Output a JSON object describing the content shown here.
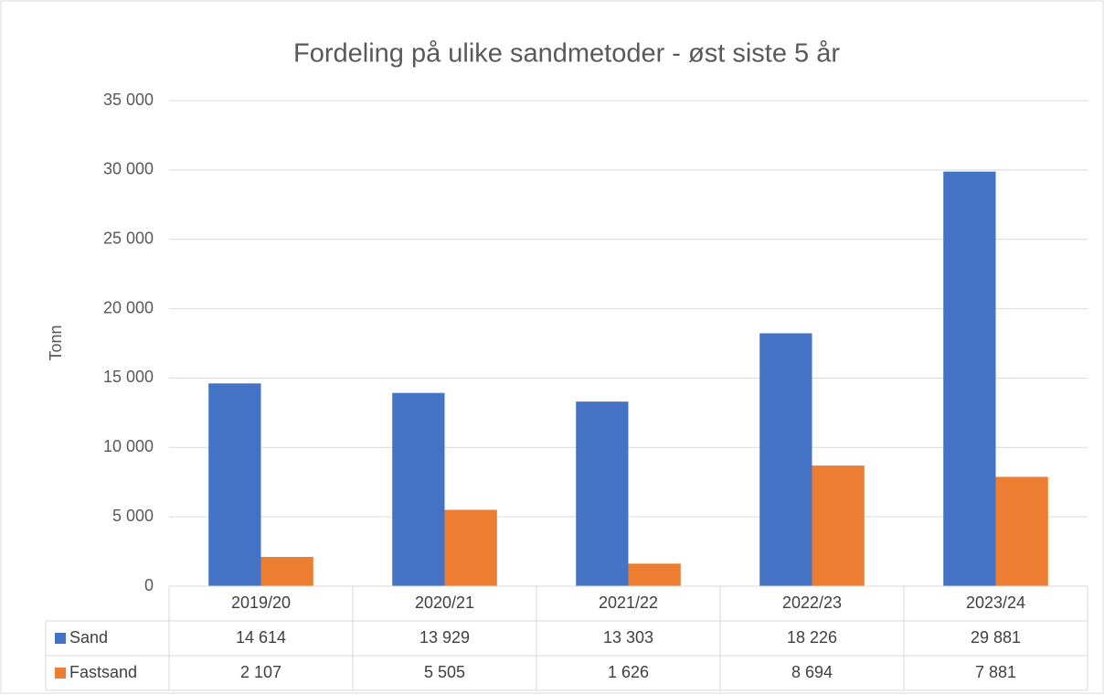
{
  "chart_data": {
    "type": "bar",
    "title": "Fordeling på ulike sandmetoder - øst siste 5 år",
    "y_label": "Tonn",
    "categories": [
      "2019/20",
      "2020/21",
      "2021/22",
      "2022/23",
      "2023/24"
    ],
    "series": [
      {
        "name": "Sand",
        "color": "#4472c4",
        "values": [
          14614,
          13929,
          13303,
          18226,
          29881
        ],
        "value_labels": [
          "14 614",
          "13 929",
          "13 303",
          "18 226",
          "29 881"
        ]
      },
      {
        "name": "Fastsand",
        "color": "#ed7d31",
        "values": [
          2107,
          5505,
          1626,
          8694,
          7881
        ],
        "value_labels": [
          "2 107",
          "5 505",
          "1 626",
          "8 694",
          "7 881"
        ]
      }
    ],
    "ylim": [
      0,
      35000
    ],
    "yticks": [
      0,
      {
        "value": 5000,
        "label": "5 000"
      },
      {
        "value": 10000,
        "label": "10 000"
      },
      {
        "value": 15000,
        "label": "15 000"
      },
      {
        "value": 20000,
        "label": "20 000"
      },
      {
        "value": 25000,
        "label": "25 000"
      },
      {
        "value": 30000,
        "label": "30 000"
      },
      {
        "value": 35000,
        "label": "35 000"
      }
    ],
    "grid": true
  }
}
